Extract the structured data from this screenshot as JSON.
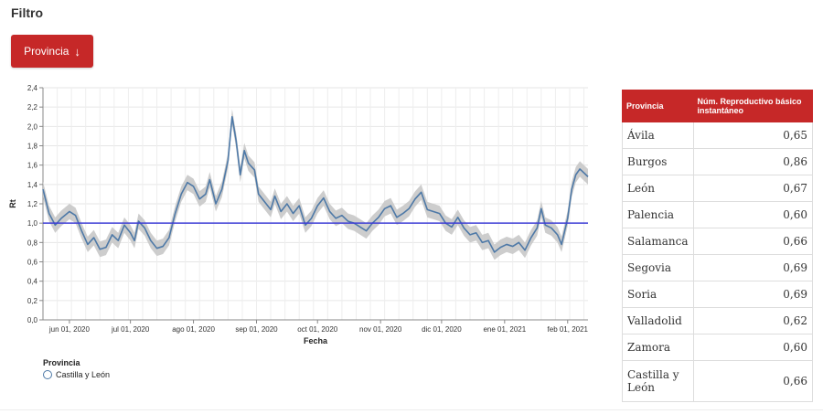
{
  "filter_title": "Filtro",
  "province_button": {
    "label": "Provincia",
    "icon": "arrow-down-icon"
  },
  "chart_data": {
    "type": "line",
    "ylabel": "Rt",
    "xlabel": "Fecha",
    "ylim": [
      0,
      2.4
    ],
    "yticks": [
      "0,0",
      "0,2",
      "0,4",
      "0,6",
      "0,8",
      "1,0",
      "1,2",
      "1,4",
      "1,6",
      "1,8",
      "2,0",
      "2,2",
      "2,4"
    ],
    "xticks": [
      "jun 01, 2020",
      "jul 01, 2020",
      "ago 01, 2020",
      "sep 01, 2020",
      "oct 01, 2020",
      "nov 01, 2020",
      "dic 01, 2020",
      "ene 01, 2021",
      "feb 01, 2021"
    ],
    "x_range": [
      "2020-05-19",
      "2021-02-11"
    ],
    "reference_line": 1.0,
    "grid": true,
    "series": [
      {
        "name": "Castilla y León",
        "color": "#4e79a7",
        "points": [
          [
            "2020-05-19",
            1.35
          ],
          [
            "2020-05-22",
            1.1
          ],
          [
            "2020-05-25",
            0.98
          ],
          [
            "2020-05-28",
            1.05
          ],
          [
            "2020-06-01",
            1.12
          ],
          [
            "2020-06-04",
            1.08
          ],
          [
            "2020-06-07",
            0.92
          ],
          [
            "2020-06-10",
            0.78
          ],
          [
            "2020-06-13",
            0.85
          ],
          [
            "2020-06-16",
            0.73
          ],
          [
            "2020-06-19",
            0.75
          ],
          [
            "2020-06-22",
            0.88
          ],
          [
            "2020-06-25",
            0.82
          ],
          [
            "2020-06-28",
            0.98
          ],
          [
            "2020-07-01",
            0.9
          ],
          [
            "2020-07-03",
            0.82
          ],
          [
            "2020-07-05",
            1.02
          ],
          [
            "2020-07-08",
            0.95
          ],
          [
            "2020-07-11",
            0.82
          ],
          [
            "2020-07-14",
            0.74
          ],
          [
            "2020-07-17",
            0.76
          ],
          [
            "2020-07-20",
            0.85
          ],
          [
            "2020-07-23",
            1.1
          ],
          [
            "2020-07-26",
            1.3
          ],
          [
            "2020-07-29",
            1.42
          ],
          [
            "2020-08-01",
            1.38
          ],
          [
            "2020-08-04",
            1.25
          ],
          [
            "2020-08-07",
            1.3
          ],
          [
            "2020-08-09",
            1.45
          ],
          [
            "2020-08-12",
            1.2
          ],
          [
            "2020-08-15",
            1.35
          ],
          [
            "2020-08-18",
            1.65
          ],
          [
            "2020-08-20",
            2.1
          ],
          [
            "2020-08-22",
            1.85
          ],
          [
            "2020-08-24",
            1.5
          ],
          [
            "2020-08-26",
            1.75
          ],
          [
            "2020-08-28",
            1.62
          ],
          [
            "2020-08-31",
            1.55
          ],
          [
            "2020-09-02",
            1.3
          ],
          [
            "2020-09-05",
            1.22
          ],
          [
            "2020-09-08",
            1.14
          ],
          [
            "2020-09-10",
            1.28
          ],
          [
            "2020-09-13",
            1.12
          ],
          [
            "2020-09-16",
            1.2
          ],
          [
            "2020-09-19",
            1.1
          ],
          [
            "2020-09-22",
            1.18
          ],
          [
            "2020-09-25",
            0.98
          ],
          [
            "2020-09-28",
            1.05
          ],
          [
            "2020-10-01",
            1.18
          ],
          [
            "2020-10-04",
            1.26
          ],
          [
            "2020-10-07",
            1.12
          ],
          [
            "2020-10-10",
            1.05
          ],
          [
            "2020-10-13",
            1.08
          ],
          [
            "2020-10-16",
            1.02
          ],
          [
            "2020-10-19",
            1.0
          ],
          [
            "2020-10-22",
            0.96
          ],
          [
            "2020-10-25",
            0.92
          ],
          [
            "2020-10-28",
            1.0
          ],
          [
            "2020-10-31",
            1.06
          ],
          [
            "2020-11-03",
            1.15
          ],
          [
            "2020-11-06",
            1.18
          ],
          [
            "2020-11-09",
            1.06
          ],
          [
            "2020-11-12",
            1.1
          ],
          [
            "2020-11-15",
            1.15
          ],
          [
            "2020-11-18",
            1.25
          ],
          [
            "2020-11-21",
            1.32
          ],
          [
            "2020-11-24",
            1.14
          ],
          [
            "2020-11-27",
            1.12
          ],
          [
            "2020-11-30",
            1.1
          ],
          [
            "2020-12-03",
            1.0
          ],
          [
            "2020-12-06",
            0.96
          ],
          [
            "2020-12-09",
            1.06
          ],
          [
            "2020-12-12",
            0.95
          ],
          [
            "2020-12-15",
            0.88
          ],
          [
            "2020-12-18",
            0.9
          ],
          [
            "2020-12-21",
            0.8
          ],
          [
            "2020-12-24",
            0.82
          ],
          [
            "2020-12-27",
            0.7
          ],
          [
            "2020-12-30",
            0.75
          ],
          [
            "2021-01-02",
            0.78
          ],
          [
            "2021-01-05",
            0.76
          ],
          [
            "2021-01-08",
            0.8
          ],
          [
            "2021-01-11",
            0.72
          ],
          [
            "2021-01-14",
            0.85
          ],
          [
            "2021-01-17",
            0.95
          ],
          [
            "2021-01-19",
            1.15
          ],
          [
            "2021-01-21",
            0.98
          ],
          [
            "2021-01-24",
            0.95
          ],
          [
            "2021-01-27",
            0.88
          ],
          [
            "2021-01-29",
            0.78
          ],
          [
            "2021-02-01",
            1.05
          ],
          [
            "2021-02-03",
            1.35
          ],
          [
            "2021-02-05",
            1.5
          ],
          [
            "2021-02-07",
            1.56
          ],
          [
            "2021-02-09",
            1.52
          ],
          [
            "2021-02-11",
            1.48
          ]
        ]
      }
    ],
    "legend": {
      "title": "Provincia",
      "items": [
        "Castilla y León"
      ],
      "placement": "bottom-left"
    }
  },
  "table": {
    "headers": [
      "Provincia",
      "Núm. Reproductivo básico instantáneo"
    ],
    "rows": [
      [
        "Ávila",
        "0,65"
      ],
      [
        "Burgos",
        "0,86"
      ],
      [
        "León",
        "0,67"
      ],
      [
        "Palencia",
        "0,60"
      ],
      [
        "Salamanca",
        "0,66"
      ],
      [
        "Segovia",
        "0,69"
      ],
      [
        "Soria",
        "0,69"
      ],
      [
        "Valladolid",
        "0,62"
      ],
      [
        "Zamora",
        "0,60"
      ],
      [
        "Castilla y León",
        "0,66"
      ]
    ]
  },
  "colors": {
    "accent": "#c62828",
    "line": "#4e79a7",
    "reference": "#3f3fd6",
    "band": "#c8c8c8"
  }
}
